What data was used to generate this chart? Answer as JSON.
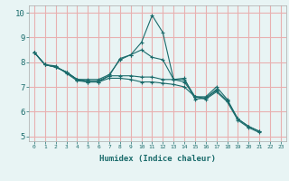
{
  "xlabel": "Humidex (Indice chaleur)",
  "background_color": "#e8f4f4",
  "grid_color": "#e8b0b0",
  "line_color": "#1a6b6b",
  "xlim": [
    -0.5,
    23.5
  ],
  "ylim": [
    4.8,
    10.3
  ],
  "xticks": [
    0,
    1,
    2,
    3,
    4,
    5,
    6,
    7,
    8,
    9,
    10,
    11,
    12,
    13,
    14,
    15,
    16,
    17,
    18,
    19,
    20,
    21,
    22,
    23
  ],
  "yticks": [
    5,
    6,
    7,
    8,
    9,
    10
  ],
  "series": [
    [
      8.4,
      7.9,
      7.8,
      7.6,
      7.3,
      7.3,
      7.3,
      7.5,
      8.1,
      8.3,
      8.8,
      9.9,
      9.2,
      7.3,
      7.3,
      6.6,
      6.6,
      7.0,
      6.5,
      5.7,
      5.4,
      5.2,
      null,
      null
    ],
    [
      8.4,
      7.9,
      7.8,
      7.6,
      7.3,
      7.25,
      7.25,
      7.45,
      8.15,
      8.3,
      8.5,
      8.2,
      8.1,
      7.3,
      7.35,
      6.5,
      6.55,
      6.9,
      null,
      null,
      null,
      null,
      null,
      null
    ],
    [
      8.4,
      7.9,
      7.85,
      7.55,
      7.25,
      7.2,
      7.2,
      7.45,
      7.45,
      7.45,
      7.4,
      7.4,
      7.3,
      7.3,
      7.2,
      6.6,
      6.55,
      6.85,
      6.45,
      5.7,
      5.4,
      5.2,
      null,
      null
    ],
    [
      8.4,
      7.9,
      7.8,
      7.6,
      7.3,
      7.2,
      7.2,
      7.35,
      7.35,
      7.3,
      7.2,
      7.2,
      7.15,
      7.1,
      7.0,
      6.6,
      6.5,
      6.8,
      6.4,
      5.65,
      5.35,
      5.15,
      null,
      null
    ]
  ]
}
